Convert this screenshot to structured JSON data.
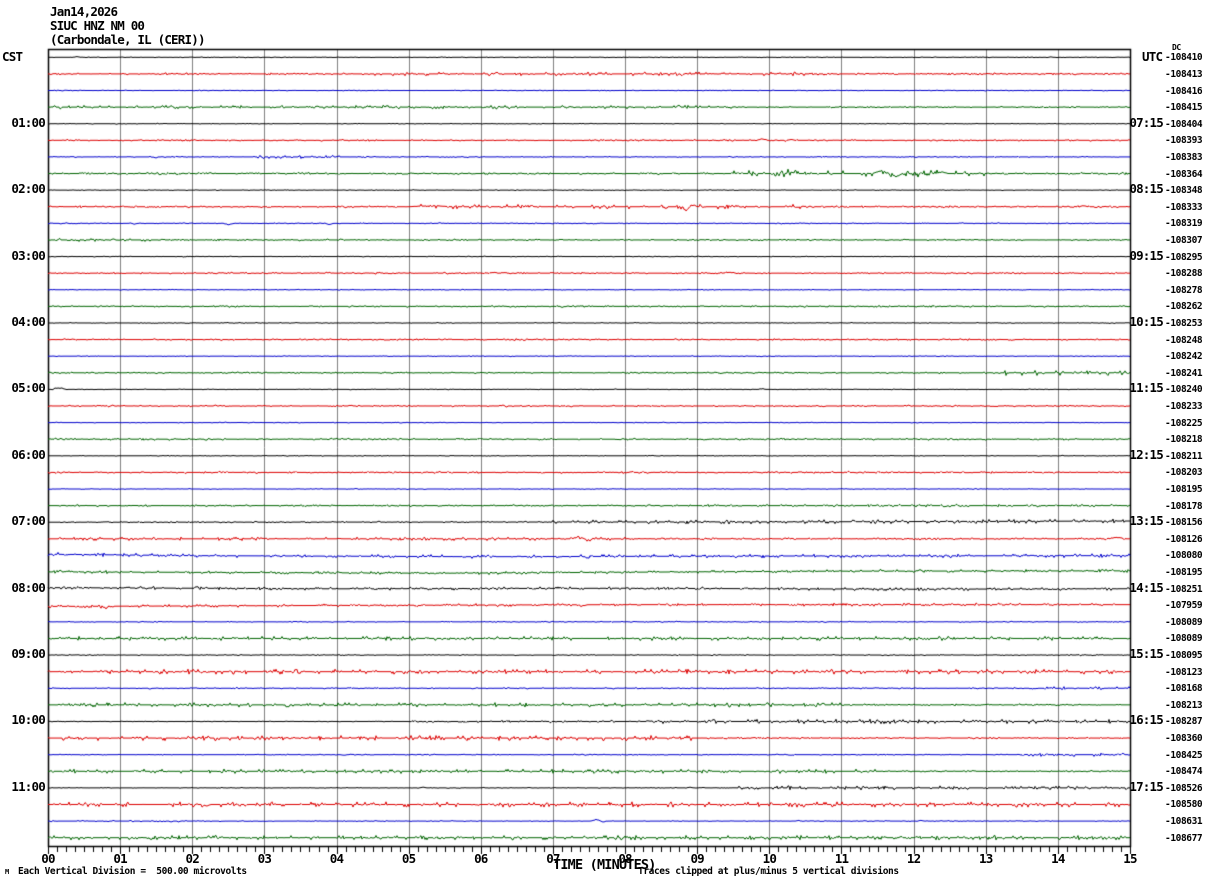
{
  "title": {
    "line1": "Jan14,2026",
    "line2": "SIUC HNZ NM 00",
    "line3": "(Carbondale, IL (CERI))"
  },
  "left_axis": {
    "label": "CST"
  },
  "right_axis": {
    "label": "UTC",
    "dc_label": "DC"
  },
  "x_axis": {
    "label": "TIME (MINUTES)",
    "ticks": [
      "00",
      "01",
      "02",
      "03",
      "04",
      "05",
      "06",
      "07",
      "08",
      "09",
      "10",
      "11",
      "12",
      "13",
      "14",
      "15"
    ]
  },
  "footer": {
    "scale_note": "Each Vertical Division =  500.00 microvolts",
    "clip_note": "Traces clipped at plus/minus 5 vertical divisions",
    "watermark": "M"
  },
  "colors": {
    "black": "#000000",
    "red": "#dd0000",
    "blue": "#0000cc",
    "green": "#006400",
    "grid": "#7f7f7f"
  },
  "chart_data": {
    "type": "line",
    "subtype": "helicorder",
    "station": "SIUC HNZ NM 00",
    "location": "Carbondale, IL (CERI)",
    "date": "Jan14,2026",
    "x_range_minutes": [
      0,
      15
    ],
    "minutes_per_line": 15,
    "division_microvolts": 500.0,
    "clip_divisions": 5,
    "grid": "vertical-every-minute",
    "rows": [
      {
        "cst": null,
        "utc": null,
        "dc": "-108410",
        "c": "black",
        "n": 0.15,
        "ev": [
          [
            0.4,
            1,
            0.05
          ]
        ]
      },
      {
        "cst": null,
        "utc": null,
        "dc": "-108413",
        "c": "red",
        "segs": [
          [
            0,
            4.5,
            0.35
          ],
          [
            4.5,
            11,
            0.6
          ],
          [
            11,
            15,
            0.35
          ]
        ]
      },
      {
        "cst": null,
        "utc": null,
        "dc": "-108416",
        "c": "blue",
        "n": 0.15
      },
      {
        "cst": null,
        "utc": null,
        "dc": "-108415",
        "c": "green",
        "segs": [
          [
            0,
            9.5,
            0.55
          ],
          [
            9.5,
            15,
            0.25
          ]
        ]
      },
      {
        "cst": "01:00",
        "utc": "07:15",
        "dc": "-108404",
        "c": "black",
        "n": 0.15
      },
      {
        "cst": null,
        "utc": null,
        "dc": "-108393",
        "c": "red",
        "n": 0.3,
        "ev": [
          [
            9.9,
            1.5,
            0.08
          ],
          [
            10.3,
            1.2,
            0.06
          ]
        ]
      },
      {
        "cst": null,
        "utc": null,
        "dc": "-108383",
        "c": "blue",
        "n": 0.2,
        "segs": [
          [
            2.8,
            4.4,
            0.5
          ]
        ],
        "ev": [
          [
            1.5,
            -1,
            0.05
          ]
        ]
      },
      {
        "cst": null,
        "utc": null,
        "dc": "-108364",
        "c": "green",
        "segs": [
          [
            0,
            9.5,
            0.35
          ],
          [
            9.5,
            13,
            1.1
          ],
          [
            13,
            15,
            0.4
          ]
        ],
        "ev": [
          [
            11.55,
            3.5,
            0.12
          ],
          [
            11.75,
            -4,
            0.1
          ],
          [
            10.3,
            2,
            0.08
          ],
          [
            12.4,
            2,
            0.08
          ]
        ]
      },
      {
        "cst": "02:00",
        "utc": "08:15",
        "dc": "-108348",
        "c": "black",
        "n": 0.15
      },
      {
        "cst": null,
        "utc": null,
        "dc": "-108333",
        "c": "red",
        "segs": [
          [
            0,
            5,
            0.35
          ],
          [
            5,
            10.5,
            0.75
          ],
          [
            10.5,
            15,
            0.35
          ]
        ],
        "ev": [
          [
            8.85,
            -6.5,
            0.07
          ],
          [
            8.9,
            2.5,
            0.12
          ],
          [
            6.65,
            1.8,
            0.1
          ],
          [
            14.35,
            1.5,
            0.07
          ],
          [
            5.3,
            1.5,
            0.3
          ]
        ]
      },
      {
        "cst": null,
        "utc": null,
        "dc": "-108319",
        "c": "blue",
        "n": 0.2,
        "ev": [
          [
            2.5,
            -1.8,
            0.06
          ],
          [
            3.9,
            -1.4,
            0.06
          ],
          [
            1.2,
            -0.8,
            0.05
          ]
        ]
      },
      {
        "cst": null,
        "utc": null,
        "dc": "-108307",
        "c": "green",
        "segs": [
          [
            0,
            1.6,
            0.5
          ],
          [
            1.6,
            15,
            0.3
          ]
        ]
      },
      {
        "cst": "03:00",
        "utc": "09:15",
        "dc": "-108295",
        "c": "black",
        "n": 0.15
      },
      {
        "cst": null,
        "utc": null,
        "dc": "-108288",
        "c": "red",
        "n": 0.3,
        "ev": [
          [
            9.45,
            1,
            0.1
          ],
          [
            6.2,
            0.8,
            0.06
          ]
        ]
      },
      {
        "cst": null,
        "utc": null,
        "dc": "-108278",
        "c": "blue",
        "n": 0.15
      },
      {
        "cst": null,
        "utc": null,
        "dc": "-108262",
        "c": "green",
        "n": 0.3
      },
      {
        "cst": "04:00",
        "utc": "10:15",
        "dc": "-108253",
        "c": "black",
        "n": 0.15
      },
      {
        "cst": null,
        "utc": null,
        "dc": "-108248",
        "c": "red",
        "n": 0.3
      },
      {
        "cst": null,
        "utc": null,
        "dc": "-108242",
        "c": "blue",
        "n": 0.15
      },
      {
        "cst": null,
        "utc": null,
        "dc": "-108241",
        "c": "green",
        "segs": [
          [
            0,
            13.2,
            0.3
          ],
          [
            13.2,
            15,
            0.9
          ]
        ]
      },
      {
        "cst": "05:00",
        "utc": "11:15",
        "dc": "-108240",
        "c": "black",
        "n": 0.15,
        "ev": [
          [
            0.15,
            2,
            0.1
          ],
          [
            9.9,
            0.8,
            0.05
          ]
        ]
      },
      {
        "cst": null,
        "utc": null,
        "dc": "-108233",
        "c": "red",
        "n": 0.3
      },
      {
        "cst": null,
        "utc": null,
        "dc": "-108225",
        "c": "blue",
        "n": 0.15
      },
      {
        "cst": null,
        "utc": null,
        "dc": "-108218",
        "c": "green",
        "n": 0.35
      },
      {
        "cst": "06:00",
        "utc": "12:15",
        "dc": "-108211",
        "c": "black",
        "n": 0.15
      },
      {
        "cst": null,
        "utc": null,
        "dc": "-108203",
        "c": "red",
        "n": 0.35
      },
      {
        "cst": null,
        "utc": null,
        "dc": "-108195",
        "c": "blue",
        "n": 0.15
      },
      {
        "cst": null,
        "utc": null,
        "dc": "-108178",
        "c": "green",
        "segs": [
          [
            0,
            9,
            0.3
          ],
          [
            9,
            15,
            0.45
          ]
        ]
      },
      {
        "cst": "07:00",
        "utc": "13:15",
        "dc": "-108156",
        "c": "black",
        "segs": [
          [
            0,
            7,
            0.25
          ],
          [
            7,
            15,
            0.65
          ]
        ],
        "drift": [
          [
            0,
            0
          ],
          [
            10,
            -0.3
          ],
          [
            15,
            -1.2
          ]
        ]
      },
      {
        "cst": null,
        "utc": null,
        "dc": "-108126",
        "c": "red",
        "segs": [
          [
            0,
            8,
            0.55
          ],
          [
            8,
            15,
            0.4
          ]
        ],
        "ev": [
          [
            7.35,
            2.5,
            0.1
          ],
          [
            7.5,
            -1.5,
            0.08
          ],
          [
            14.8,
            1.5,
            0.15
          ]
        ]
      },
      {
        "cst": null,
        "utc": null,
        "dc": "-108080",
        "c": "blue",
        "segs": [
          [
            0,
            15,
            0.6
          ]
        ],
        "drift": [
          [
            0,
            -1.2
          ],
          [
            2,
            0.2
          ],
          [
            6,
            1.3
          ],
          [
            10,
            0.6
          ],
          [
            15,
            0.2
          ]
        ]
      },
      {
        "cst": null,
        "utc": null,
        "dc": "-108195",
        "c": "green",
        "segs": [
          [
            0,
            15,
            0.5
          ]
        ],
        "drift": [
          [
            0,
            -0.2
          ],
          [
            5.5,
            1.2
          ],
          [
            10.5,
            -0.8
          ],
          [
            15,
            -1.2
          ]
        ]
      },
      {
        "cst": "08:00",
        "utc": "14:15",
        "dc": "-108251",
        "c": "black",
        "segs": [
          [
            0,
            15,
            0.5
          ]
        ],
        "drift": [
          [
            0,
            -1
          ],
          [
            4,
            0.2
          ],
          [
            8,
            -0.4
          ],
          [
            12,
            0.6
          ],
          [
            15,
            0.1
          ]
        ]
      },
      {
        "cst": null,
        "utc": null,
        "dc": "-107959",
        "c": "red",
        "segs": [
          [
            0,
            15,
            0.5
          ]
        ],
        "drift": [
          [
            0,
            1.2
          ],
          [
            4,
            0.2
          ],
          [
            8,
            -0.6
          ],
          [
            15,
            -0.6
          ]
        ],
        "ev": [
          [
            7.4,
            -1.8,
            0.08
          ],
          [
            0.8,
            -1.5,
            0.12
          ]
        ]
      },
      {
        "cst": null,
        "utc": null,
        "dc": "-108089",
        "c": "blue",
        "n": 0.2
      },
      {
        "cst": null,
        "utc": null,
        "dc": "-108089",
        "c": "green",
        "segs": [
          [
            0,
            15,
            0.65
          ]
        ]
      },
      {
        "cst": "09:00",
        "utc": "15:15",
        "dc": "-108095",
        "c": "black",
        "n": 0.2
      },
      {
        "cst": null,
        "utc": null,
        "dc": "-108123",
        "c": "red",
        "segs": [
          [
            0,
            15,
            0.8
          ]
        ]
      },
      {
        "cst": null,
        "utc": null,
        "dc": "-108168",
        "c": "blue",
        "segs": [
          [
            0,
            13.8,
            0.25
          ],
          [
            13.8,
            15,
            0.5
          ]
        ],
        "ev": [
          [
            4.2,
            0.8,
            0.05
          ]
        ]
      },
      {
        "cst": null,
        "utc": null,
        "dc": "-108213",
        "c": "green",
        "segs": [
          [
            0,
            11,
            0.7
          ],
          [
            11,
            15,
            0.35
          ]
        ]
      },
      {
        "cst": "10:00",
        "utc": "16:15",
        "dc": "-108287",
        "c": "black",
        "segs": [
          [
            0,
            4.8,
            0.15
          ],
          [
            4.8,
            8.5,
            0.4
          ],
          [
            8.5,
            15,
            0.7
          ]
        ]
      },
      {
        "cst": null,
        "utc": null,
        "dc": "-108360",
        "c": "red",
        "segs": [
          [
            0,
            9,
            0.8
          ],
          [
            9,
            15,
            0.3
          ]
        ],
        "ev": [
          [
            9.8,
            0.8,
            0.06
          ]
        ]
      },
      {
        "cst": null,
        "utc": null,
        "dc": "-108425",
        "c": "blue",
        "segs": [
          [
            0,
            13.5,
            0.2
          ],
          [
            13.5,
            15,
            0.55
          ]
        ],
        "ev": [
          [
            4.1,
            -0.8,
            0.05
          ],
          [
            14.2,
            -1,
            0.05
          ]
        ]
      },
      {
        "cst": null,
        "utc": null,
        "dc": "-108474",
        "c": "green",
        "segs": [
          [
            0,
            11.5,
            0.7
          ],
          [
            11.5,
            15,
            0.3
          ]
        ]
      },
      {
        "cst": "11:00",
        "utc": "17:15",
        "dc": "-108526",
        "c": "black",
        "segs": [
          [
            0,
            9.5,
            0.15
          ],
          [
            9.5,
            15,
            0.65
          ]
        ],
        "ev": [
          [
            5.2,
            0.8,
            0.05
          ],
          [
            8.9,
            0.8,
            0.05
          ]
        ]
      },
      {
        "cst": null,
        "utc": null,
        "dc": "-108580",
        "c": "red",
        "segs": [
          [
            0,
            15,
            0.85
          ]
        ],
        "ev": [
          [
            2.2,
            -2,
            0.06
          ]
        ]
      },
      {
        "cst": null,
        "utc": null,
        "dc": "-108631",
        "c": "blue",
        "segs": [
          [
            0,
            2.6,
            0.3
          ],
          [
            2.6,
            15,
            0.15
          ]
        ],
        "ev": [
          [
            7.6,
            2,
            0.08
          ],
          [
            7.7,
            -1,
            0.06
          ],
          [
            10.4,
            0.8,
            0.05
          ],
          [
            12.1,
            0.8,
            0.05
          ]
        ]
      },
      {
        "cst": null,
        "utc": null,
        "dc": "-108677",
        "c": "green",
        "segs": [
          [
            0,
            15,
            0.7
          ]
        ]
      }
    ]
  }
}
